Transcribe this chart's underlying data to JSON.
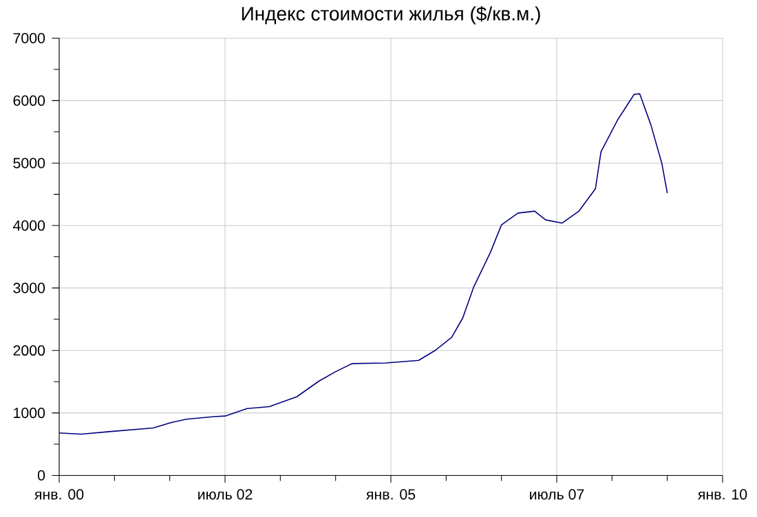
{
  "chart_data": {
    "type": "line",
    "title": "Индекс стоимости жилья ($/кв.м.)",
    "x": [
      "2000-01",
      "2000-05",
      "2000-10",
      "2001-06",
      "2001-09",
      "2001-12",
      "2002-05",
      "2002-07",
      "2002-11",
      "2003-03",
      "2003-08",
      "2003-12",
      "2004-03",
      "2004-06",
      "2004-12",
      "2005-06",
      "2005-09",
      "2005-12",
      "2006-02",
      "2006-04",
      "2006-07",
      "2006-09",
      "2006-12",
      "2007-03",
      "2007-05",
      "2007-08",
      "2007-11",
      "2008-02",
      "2008-03",
      "2008-06",
      "2008-09",
      "2008-10",
      "2008-12",
      "2009-02",
      "2009-03"
    ],
    "series": [
      {
        "color": "#000080",
        "values": [
          680,
          660,
          700,
          760,
          840,
          900,
          940,
          950,
          1070,
          1100,
          1260,
          1510,
          1660,
          1790,
          1800,
          1840,
          2000,
          2210,
          2520,
          3020,
          3570,
          4010,
          4200,
          4230,
          4090,
          4040,
          4230,
          4590,
          5180,
          5690,
          6100,
          6110,
          5620,
          5000,
          4520
        ]
      }
    ],
    "xlim": [
      "2000-01",
      "2010-01"
    ],
    "xticks": [
      {
        "value": "2000-01",
        "label": "янв. 00"
      },
      {
        "value": "2000-11",
        "label": null
      },
      {
        "value": "2001-09",
        "label": null
      },
      {
        "value": "2002-07",
        "label": "июль 02"
      },
      {
        "value": "2003-05",
        "label": null
      },
      {
        "value": "2004-03",
        "label": null
      },
      {
        "value": "2005-01",
        "label": "янв. 05"
      },
      {
        "value": "2005-11",
        "label": null
      },
      {
        "value": "2006-09",
        "label": null
      },
      {
        "value": "2007-07",
        "label": "июль 07"
      },
      {
        "value": "2008-05",
        "label": null
      },
      {
        "value": "2009-03",
        "label": null
      },
      {
        "value": "2010-01",
        "label": "янв. 10"
      }
    ],
    "ylim": [
      0,
      7000
    ],
    "yticks": [
      0,
      {
        "value": 500,
        "label": null
      },
      1000,
      {
        "value": 1500,
        "label": null
      },
      2000,
      {
        "value": 2500,
        "label": null
      },
      3000,
      {
        "value": 3500,
        "label": null
      },
      4000,
      {
        "value": 4500,
        "label": null
      },
      5000,
      {
        "value": 5500,
        "label": null
      },
      6000,
      {
        "value": 6500,
        "label": null
      },
      7000
    ],
    "grid": true,
    "marker": "none",
    "line_style": "solid"
  }
}
